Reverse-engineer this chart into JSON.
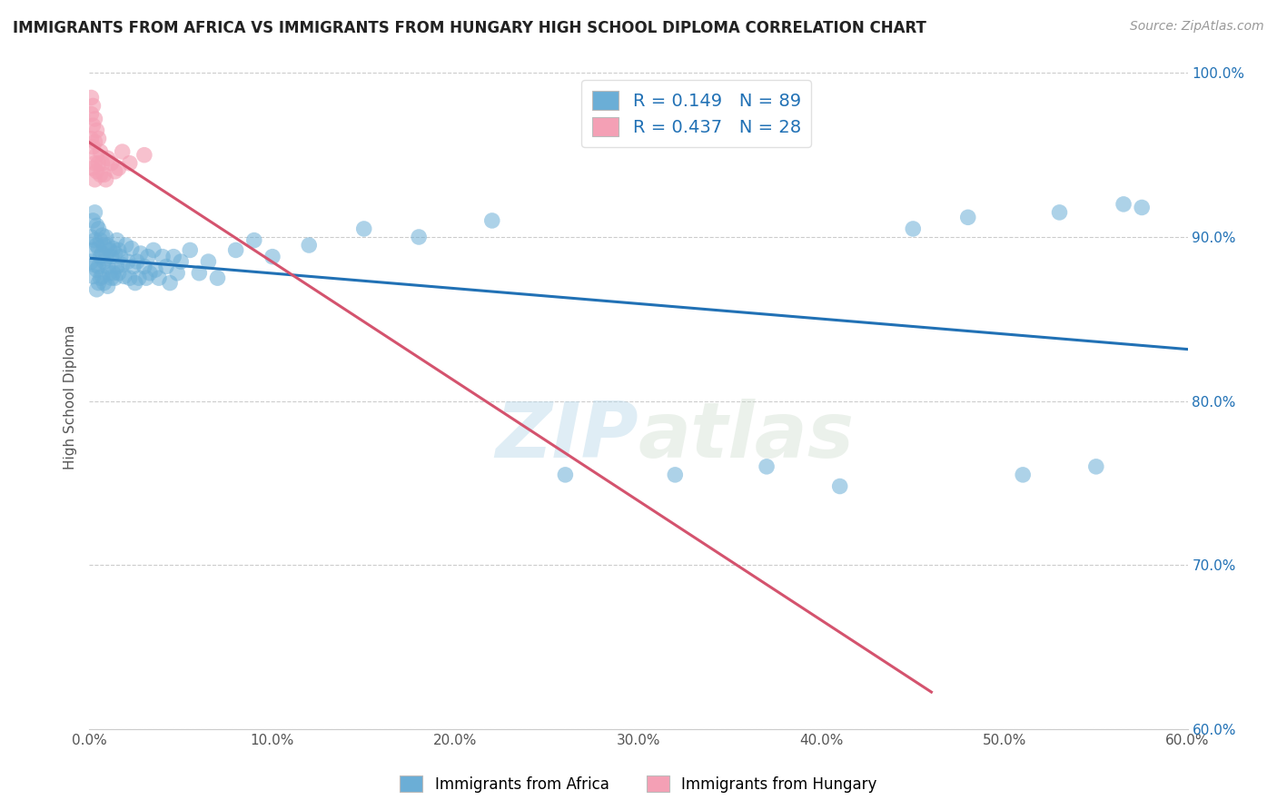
{
  "title": "IMMIGRANTS FROM AFRICA VS IMMIGRANTS FROM HUNGARY HIGH SCHOOL DIPLOMA CORRELATION CHART",
  "source": "Source: ZipAtlas.com",
  "ylabel": "High School Diploma",
  "xlim": [
    0.0,
    0.6
  ],
  "ylim": [
    0.6,
    1.005
  ],
  "africa_r": "0.149",
  "africa_n": "89",
  "hungary_r": "0.437",
  "hungary_n": "28",
  "africa_color": "#6baed6",
  "hungary_color": "#f4a0b5",
  "africa_line_color": "#2171b5",
  "hungary_line_color": "#d4536e",
  "watermark_zip": "ZIP",
  "watermark_atlas": "atlas",
  "africa_x": [
    0.001,
    0.001,
    0.002,
    0.002,
    0.002,
    0.003,
    0.003,
    0.003,
    0.004,
    0.004,
    0.004,
    0.004,
    0.005,
    0.005,
    0.005,
    0.005,
    0.006,
    0.006,
    0.006,
    0.007,
    0.007,
    0.007,
    0.008,
    0.008,
    0.008,
    0.009,
    0.009,
    0.01,
    0.01,
    0.01,
    0.011,
    0.011,
    0.012,
    0.012,
    0.013,
    0.013,
    0.014,
    0.014,
    0.015,
    0.015,
    0.016,
    0.016,
    0.017,
    0.018,
    0.019,
    0.02,
    0.021,
    0.022,
    0.023,
    0.024,
    0.025,
    0.026,
    0.027,
    0.028,
    0.03,
    0.031,
    0.032,
    0.033,
    0.035,
    0.036,
    0.038,
    0.04,
    0.042,
    0.044,
    0.046,
    0.048,
    0.05,
    0.055,
    0.06,
    0.065,
    0.07,
    0.08,
    0.09,
    0.1,
    0.12,
    0.15,
    0.18,
    0.22,
    0.26,
    0.32,
    0.37,
    0.41,
    0.45,
    0.48,
    0.51,
    0.53,
    0.55,
    0.565,
    0.575
  ],
  "africa_y": [
    0.9,
    0.885,
    0.91,
    0.892,
    0.876,
    0.915,
    0.898,
    0.883,
    0.907,
    0.895,
    0.88,
    0.868,
    0.905,
    0.893,
    0.882,
    0.872,
    0.898,
    0.888,
    0.875,
    0.901,
    0.89,
    0.876,
    0.895,
    0.885,
    0.872,
    0.9,
    0.887,
    0.895,
    0.882,
    0.87,
    0.892,
    0.878,
    0.888,
    0.875,
    0.893,
    0.878,
    0.89,
    0.875,
    0.898,
    0.882,
    0.892,
    0.878,
    0.888,
    0.883,
    0.876,
    0.895,
    0.885,
    0.875,
    0.893,
    0.882,
    0.872,
    0.885,
    0.875,
    0.89,
    0.882,
    0.875,
    0.888,
    0.878,
    0.892,
    0.88,
    0.875,
    0.888,
    0.882,
    0.872,
    0.888,
    0.878,
    0.885,
    0.892,
    0.878,
    0.885,
    0.875,
    0.892,
    0.898,
    0.888,
    0.895,
    0.905,
    0.9,
    0.91,
    0.755,
    0.755,
    0.76,
    0.748,
    0.905,
    0.912,
    0.755,
    0.915,
    0.76,
    0.92,
    0.918
  ],
  "hungary_x": [
    0.001,
    0.001,
    0.001,
    0.002,
    0.002,
    0.002,
    0.002,
    0.003,
    0.003,
    0.003,
    0.003,
    0.004,
    0.004,
    0.004,
    0.005,
    0.005,
    0.006,
    0.006,
    0.007,
    0.008,
    0.009,
    0.01,
    0.012,
    0.014,
    0.016,
    0.018,
    0.022,
    0.03
  ],
  "hungary_y": [
    0.985,
    0.975,
    0.96,
    0.98,
    0.968,
    0.955,
    0.942,
    0.972,
    0.958,
    0.945,
    0.935,
    0.965,
    0.95,
    0.94,
    0.96,
    0.945,
    0.952,
    0.938,
    0.945,
    0.938,
    0.935,
    0.948,
    0.945,
    0.94,
    0.942,
    0.952,
    0.945,
    0.95
  ],
  "xticks": [
    0.0,
    0.1,
    0.2,
    0.3,
    0.4,
    0.5,
    0.6
  ],
  "xtick_labels": [
    "0.0%",
    "10.0%",
    "20.0%",
    "30.0%",
    "40.0%",
    "50.0%",
    "60.0%"
  ],
  "yticks": [
    0.6,
    0.7,
    0.8,
    0.9,
    1.0
  ],
  "ytick_labels_right": [
    "60.0%",
    "70.0%",
    "80.0%",
    "90.0%",
    "100.0%"
  ]
}
